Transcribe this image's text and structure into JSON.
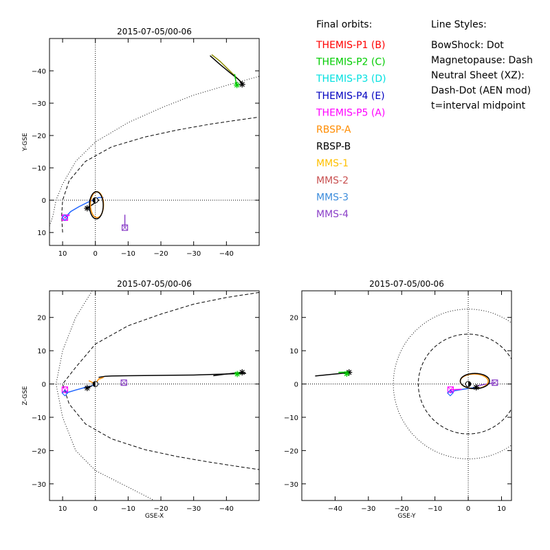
{
  "chart_data": [
    {
      "type": "line",
      "title": "2015-07-05/00-06",
      "xlabel": "",
      "ylabel": "Y-GSE",
      "xlim": [
        14,
        -50
      ],
      "ylim": [
        14,
        -50
      ],
      "xticks": [
        10,
        0,
        -10,
        -20,
        -30,
        -40
      ],
      "yticks": [
        10,
        0,
        -10,
        -20,
        -30,
        -40
      ],
      "xticklabels": [
        "10",
        "0",
        "−10",
        "−20",
        "−30",
        "−40"
      ],
      "yticklabels": [
        "10",
        "0",
        "−10",
        "−20",
        "−30",
        "−40"
      ],
      "series": [
        {
          "color": "#8b8b00",
          "style": "solid",
          "points": [
            [
              -35.5,
              -45
            ],
            [
              -38,
              -43
            ],
            [
              -40.5,
              -40.5
            ],
            [
              -43,
              -38
            ],
            [
              -45,
              -36
            ]
          ]
        },
        {
          "color": "#000000",
          "style": "solid",
          "points": [
            [
              -35,
              -44.7
            ],
            [
              -38,
              -42
            ],
            [
              -41,
              -39.5
            ],
            [
              -43.5,
              -37.5
            ],
            [
              -45,
              -36
            ]
          ]
        },
        {
          "color": "#00cc00",
          "style": "solid",
          "points": [
            [
              -42.5,
              -39
            ],
            [
              -43,
              -36
            ],
            [
              -43.2,
              -35.6
            ]
          ]
        },
        {
          "color": "#1e64ff",
          "style": "solid",
          "points": [
            [
              -2.5,
              -0.8
            ],
            [
              -1,
              -0.8
            ],
            [
              2,
              0.5
            ],
            [
              5,
              2
            ],
            [
              7.5,
              3.5
            ],
            [
              9.3,
              5.4
            ]
          ]
        },
        {
          "color": "#ff00ff",
          "style": "solid",
          "points": [
            [
              9.3,
              5.4
            ],
            [
              7.8,
              4.5
            ]
          ]
        },
        {
          "color": "#8b40c8",
          "style": "solid",
          "points": [
            [
              -9,
              4.5
            ],
            [
              -9,
              6.5
            ],
            [
              -9,
              8.2
            ]
          ]
        },
        {
          "color": "#000000",
          "style": "solid",
          "points": [
            [
              2.5,
              2.5
            ],
            [
              -1,
              0
            ],
            [
              0,
              -0.5
            ]
          ]
        },
        {
          "color": "#ff8c00",
          "style": "ellipse",
          "cx": -0.5,
          "cy": 1.4,
          "rx": 2,
          "ry": 4
        },
        {
          "color": "#000000",
          "style": "ellipse",
          "cx": -0.3,
          "cy": 1.6,
          "rx": 2.1,
          "ry": 4.2
        }
      ],
      "boundaries": [
        {
          "name": "BowShock",
          "style": "dotted",
          "points": [
            [
              14,
              8
            ],
            [
              13,
              5
            ],
            [
              12,
              0
            ],
            [
              10,
              -5
            ],
            [
              6,
              -12
            ],
            [
              0,
              -18
            ],
            [
              -10,
              -24
            ],
            [
              -20,
              -28.5
            ],
            [
              -30,
              -32.5
            ],
            [
              -40,
              -35.5
            ],
            [
              -50,
              -38.3
            ]
          ]
        },
        {
          "name": "Magnetopause",
          "style": "dashed",
          "points": [
            [
              10,
              10
            ],
            [
              10.3,
              5
            ],
            [
              10,
              0
            ],
            [
              8,
              -6
            ],
            [
              3,
              -12
            ],
            [
              -5,
              -16.5
            ],
            [
              -15,
              -19.5
            ],
            [
              -25,
              -21.7
            ],
            [
              -35,
              -23.5
            ],
            [
              -45,
              -25
            ],
            [
              -50,
              -25.7
            ]
          ]
        }
      ],
      "markers": [
        {
          "type": "asterisk",
          "color": "#000000",
          "x": -44.8,
          "y": -35.8
        },
        {
          "type": "asterisk",
          "color": "#00cc00",
          "x": -43.2,
          "y": -35.6
        },
        {
          "type": "asterisk",
          "color": "#000000",
          "x": 2.5,
          "y": 2.5
        },
        {
          "type": "square",
          "color": "#8b40c8",
          "x": -9,
          "y": 8.5
        },
        {
          "type": "square",
          "color": "#ff00ff",
          "x": 9.3,
          "y": 5.4
        },
        {
          "type": "diamond",
          "color": "#1e64ff",
          "x": 9.3,
          "y": 5.4
        },
        {
          "type": "earth",
          "color": "#000000",
          "x": 0,
          "y": 0
        }
      ]
    },
    {
      "type": "line",
      "title": "2015-07-05/00-06",
      "xlabel": "GSE-X",
      "ylabel": "Z-GSE",
      "xlim": [
        14,
        -50
      ],
      "ylim": [
        -35,
        28
      ],
      "xticks": [
        10,
        0,
        -10,
        -20,
        -30,
        -40
      ],
      "yticks": [
        -30,
        -20,
        -10,
        0,
        10,
        20
      ],
      "xticklabels": [
        "10",
        "0",
        "−10",
        "−20",
        "−30",
        "−40"
      ],
      "yticklabels": [
        "−30",
        "−20",
        "−10",
        "0",
        "10",
        "20"
      ],
      "series": [
        {
          "color": "#000000",
          "style": "solid",
          "points": [
            [
              -1,
              2
            ],
            [
              -3,
              2.3
            ],
            [
              -5,
              2.4
            ],
            [
              -10,
              2.5
            ],
            [
              -20,
              2.6
            ],
            [
              -30,
              2.7
            ],
            [
              -40,
              3
            ],
            [
              -46,
              3.2
            ]
          ]
        },
        {
          "color": "#000000",
          "style": "solid",
          "points": [
            [
              -36,
              2.5
            ],
            [
              -40,
              3
            ],
            [
              -44.8,
              3.5
            ]
          ]
        },
        {
          "color": "#00cc00",
          "style": "solid",
          "points": [
            [
              -42.5,
              3.2
            ],
            [
              -43.3,
              3
            ]
          ]
        },
        {
          "color": "#ff8c00",
          "style": "solid",
          "points": [
            [
              2,
              1
            ],
            [
              0,
              0
            ],
            [
              -1,
              1.5
            ],
            [
              -2.5,
              2
            ],
            [
              -1.2,
              1.5
            ]
          ]
        },
        {
          "color": "#1e64ff",
          "style": "solid",
          "points": [
            [
              -1,
              0
            ],
            [
              3,
              -1
            ],
            [
              6,
              -1.8
            ],
            [
              9,
              -2.7
            ]
          ]
        },
        {
          "color": "#ff00ff",
          "style": "solid",
          "points": [
            [
              9.3,
              -2.7
            ],
            [
              8.5,
              -2
            ]
          ]
        },
        {
          "color": "#000000",
          "style": "solid",
          "points": [
            [
              2.5,
              -1.2
            ],
            [
              1,
              -0.5
            ]
          ]
        }
      ],
      "boundaries": [
        {
          "name": "BowShock",
          "style": "dotted",
          "points": [
            [
              1,
              28
            ],
            [
              6,
              20
            ],
            [
              10,
              10
            ],
            [
              12,
              0
            ],
            [
              10,
              -10
            ],
            [
              6,
              -20
            ],
            [
              0,
              -26
            ],
            [
              -10,
              -31
            ],
            [
              -18,
              -35
            ]
          ]
        },
        {
          "name": "Magnetopause",
          "style": "dashed",
          "points": [
            [
              -50,
              27.5
            ],
            [
              -40,
              26
            ],
            [
              -30,
              24
            ],
            [
              -20,
              21
            ],
            [
              -10,
              17.5
            ],
            [
              0,
              12
            ],
            [
              6,
              5
            ],
            [
              10,
              0
            ],
            [
              8,
              -6
            ],
            [
              3,
              -12
            ],
            [
              -5,
              -16.5
            ],
            [
              -15,
              -19.7
            ],
            [
              -25,
              -21.8
            ],
            [
              -35,
              -23.5
            ],
            [
              -45,
              -25
            ],
            [
              -50,
              -25.7
            ]
          ]
        }
      ],
      "markers": [
        {
          "type": "asterisk",
          "color": "#000000",
          "x": -44.8,
          "y": 3.5
        },
        {
          "type": "asterisk",
          "color": "#00cc00",
          "x": -43.3,
          "y": 3
        },
        {
          "type": "asterisk",
          "color": "#000000",
          "x": 2.5,
          "y": -1.2
        },
        {
          "type": "square",
          "color": "#8b40c8",
          "x": -8.7,
          "y": 0.4
        },
        {
          "type": "square",
          "color": "#ff00ff",
          "x": 9.3,
          "y": -1.7
        },
        {
          "type": "diamond",
          "color": "#1e64ff",
          "x": 9.3,
          "y": -2.7
        },
        {
          "type": "earth",
          "color": "#000000",
          "x": 0,
          "y": 0
        }
      ]
    },
    {
      "type": "line",
      "title": "2015-07-05/00-06",
      "xlabel": "GSE-Y",
      "ylabel": "",
      "xlim": [
        -50,
        13
      ],
      "ylim": [
        -35,
        28
      ],
      "xticks": [
        -40,
        -30,
        -20,
        -10,
        0,
        10
      ],
      "yticks": [
        -30,
        -20,
        -10,
        0,
        10,
        20
      ],
      "xticklabels": [
        "−40",
        "−30",
        "−20",
        "−10",
        "0",
        "10"
      ],
      "yticklabels": [
        "−30",
        "−20",
        "−10",
        "0",
        "10",
        "20"
      ],
      "series": [
        {
          "color": "#000000",
          "style": "solid",
          "points": [
            [
              -46,
              2.4
            ],
            [
              -40,
              3
            ],
            [
              -37,
              3.3
            ],
            [
              -35.8,
              3.5
            ]
          ]
        },
        {
          "color": "#00cc00",
          "style": "solid",
          "points": [
            [
              -39,
              3.5
            ],
            [
              -36,
              3.6
            ],
            [
              -35.6,
              3.1
            ]
          ]
        },
        {
          "color": "#1e64ff",
          "style": "solid",
          "points": [
            [
              2.4,
              -1
            ],
            [
              -1,
              -1.5
            ],
            [
              -4,
              -2
            ],
            [
              -5.4,
              -2.7
            ]
          ]
        },
        {
          "color": "#ff00ff",
          "style": "solid",
          "points": [
            [
              -5.4,
              -2.7
            ],
            [
              -5.3,
              -1.7
            ],
            [
              -2,
              -1.6
            ]
          ]
        },
        {
          "color": "#8b40c8",
          "style": "solid",
          "points": [
            [
              2.5,
              -0.6
            ],
            [
              5,
              -0.1
            ],
            [
              8,
              0.4
            ]
          ]
        },
        {
          "color": "#ff8c00",
          "style": "ellipse",
          "cx": 1.8,
          "cy": 0.8,
          "rx": 4.2,
          "ry": 2.2
        },
        {
          "color": "#000000",
          "style": "ellipse",
          "cx": 2.0,
          "cy": 0.9,
          "rx": 4.4,
          "ry": 2.3
        }
      ],
      "boundaries": [
        {
          "name": "BowShock",
          "style": "dotted",
          "circle": [
            0,
            0,
            22.5
          ]
        },
        {
          "name": "Magnetopause",
          "style": "dashed",
          "circle": [
            0,
            0,
            15
          ]
        }
      ],
      "markers": [
        {
          "type": "asterisk",
          "color": "#000000",
          "x": -35.8,
          "y": 3.5
        },
        {
          "type": "asterisk",
          "color": "#00cc00",
          "x": -36.5,
          "y": 3.1
        },
        {
          "type": "asterisk",
          "color": "#000000",
          "x": 2.4,
          "y": -1
        },
        {
          "type": "square",
          "color": "#8b40c8",
          "x": 8,
          "y": 0.4
        },
        {
          "type": "square",
          "color": "#ff00ff",
          "x": -5.3,
          "y": -1.7
        },
        {
          "type": "diamond",
          "color": "#1e64ff",
          "x": -5.4,
          "y": -2.7
        },
        {
          "type": "earth",
          "color": "#000000",
          "x": 0,
          "y": 0
        }
      ]
    }
  ],
  "legend": {
    "orbits_heading": "Final orbits:",
    "orbits": [
      {
        "label": "THEMIS-P1 (B)",
        "color": "#ff0000"
      },
      {
        "label": "THEMIS-P2 (C)",
        "color": "#00cc00"
      },
      {
        "label": "THEMIS-P3 (D)",
        "color": "#00e0e0"
      },
      {
        "label": "THEMIS-P4 (E)",
        "color": "#0000c0"
      },
      {
        "label": "THEMIS-P5 (A)",
        "color": "#ff00ff"
      },
      {
        "label": "RBSP-A",
        "color": "#ff8c00"
      },
      {
        "label": "RBSP-B",
        "color": "#000000"
      },
      {
        "label": "MMS-1",
        "color": "#ffc000"
      },
      {
        "label": "MMS-2",
        "color": "#c85050"
      },
      {
        "label": "MMS-3",
        "color": "#3c8cdc"
      },
      {
        "label": "MMS-4",
        "color": "#8b40c8"
      }
    ],
    "styles_heading": "Line Styles:",
    "styles": [
      "BowShock: Dot",
      "Magnetopause: Dash",
      "Neutral Sheet (XZ):",
      "  Dash-Dot (AEN mod)",
      "  t=interval midpoint"
    ]
  }
}
